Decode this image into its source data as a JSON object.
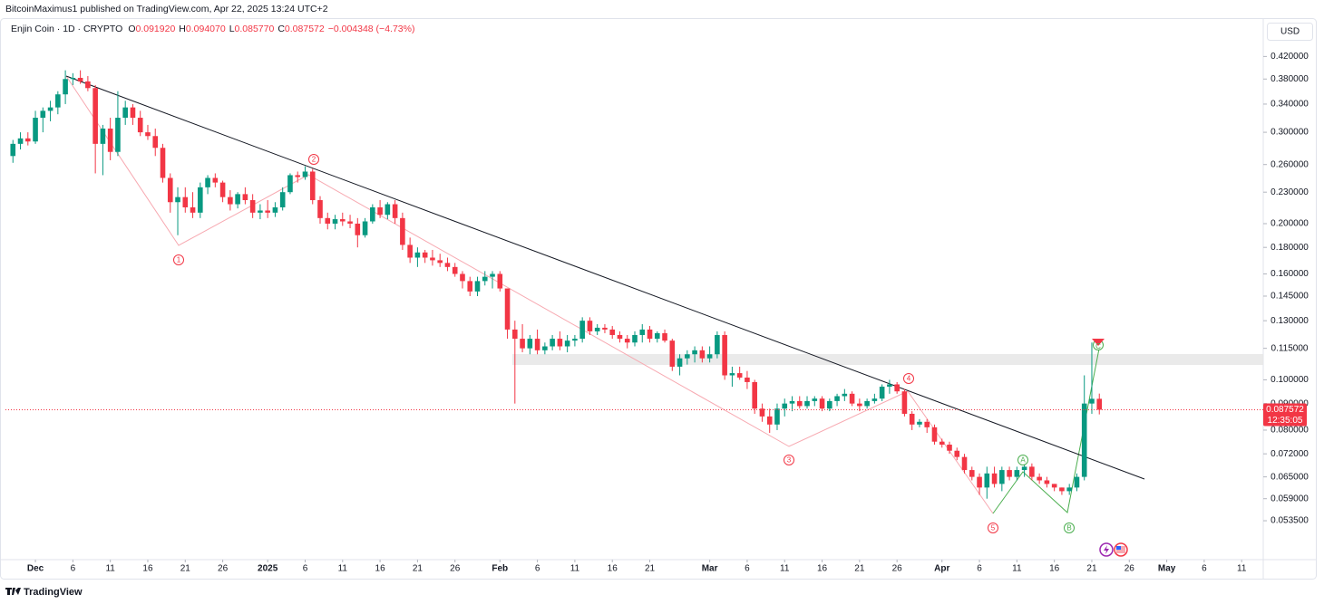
{
  "header": {
    "publisher": "BitcoinMaximus1 published on TradingView.com, Apr 22, 2025 13:24 UTC+2",
    "symbol": "Enjin Coin · 1D · CRYPTO",
    "ohlc": [
      {
        "key": "O",
        "value": "0.091920"
      },
      {
        "key": "H",
        "value": "0.094070"
      },
      {
        "key": "L",
        "value": "0.085770"
      },
      {
        "key": "C",
        "value": "0.087572"
      }
    ],
    "change": "−0.004348 (−4.73%)",
    "currency": "USD"
  },
  "annotations": {
    "waves": [
      "1",
      "2",
      "3",
      "4",
      "5"
    ],
    "corrections": [
      "A",
      "B",
      "C"
    ]
  },
  "footer": {
    "brand": "TradingView"
  },
  "chart_data": {
    "type": "candlestick",
    "log_scale": true,
    "grid": false,
    "up_color": "#089981",
    "down_color": "#f23645",
    "x": [
      "Nov 28",
      "Nov 29",
      "Nov 30",
      "Dec 1",
      "Dec 2",
      "Dec 3",
      "Dec 4",
      "Dec 5",
      "Dec 6",
      "Dec 7",
      "Dec 8",
      "Dec 9",
      "Dec 10",
      "Dec 11",
      "Dec 12",
      "Dec 13",
      "Dec 14",
      "Dec 15",
      "Dec 16",
      "Dec 17",
      "Dec 18",
      "Dec 19",
      "Dec 20",
      "Dec 21",
      "Dec 22",
      "Dec 23",
      "Dec 24",
      "Dec 25",
      "Dec 26",
      "Dec 27",
      "Dec 28",
      "Dec 29",
      "Dec 30",
      "Dec 31",
      "Jan 1",
      "Jan 2",
      "Jan 3",
      "Jan 4",
      "Jan 5",
      "Jan 6",
      "Jan 7",
      "Jan 8",
      "Jan 9",
      "Jan 10",
      "Jan 11",
      "Jan 12",
      "Jan 13",
      "Jan 14",
      "Jan 15",
      "Jan 16",
      "Jan 17",
      "Jan 18",
      "Jan 19",
      "Jan 20",
      "Jan 21",
      "Jan 22",
      "Jan 23",
      "Jan 24",
      "Jan 25",
      "Jan 26",
      "Jan 27",
      "Jan 28",
      "Jan 29",
      "Jan 30",
      "Jan 31",
      "Feb 1",
      "Feb 2",
      "Feb 3",
      "Feb 4",
      "Feb 5",
      "Feb 6",
      "Feb 7",
      "Feb 8",
      "Feb 9",
      "Feb 10",
      "Feb 11",
      "Feb 12",
      "Feb 13",
      "Feb 14",
      "Feb 15",
      "Feb 16",
      "Feb 17",
      "Feb 18",
      "Feb 19",
      "Feb 20",
      "Feb 21",
      "Feb 22",
      "Feb 23",
      "Feb 24",
      "Feb 25",
      "Feb 26",
      "Feb 27",
      "Feb 28",
      "Mar 1",
      "Mar 2",
      "Mar 3",
      "Mar 4",
      "Mar 5",
      "Mar 6",
      "Mar 7",
      "Mar 8",
      "Mar 9",
      "Mar 10",
      "Mar 11",
      "Mar 12",
      "Mar 13",
      "Mar 14",
      "Mar 15",
      "Mar 16",
      "Mar 17",
      "Mar 18",
      "Mar 19",
      "Mar 20",
      "Mar 21",
      "Mar 22",
      "Mar 23",
      "Mar 24",
      "Mar 25",
      "Mar 26",
      "Mar 27",
      "Mar 28",
      "Mar 29",
      "Mar 30",
      "Mar 31",
      "Apr 1",
      "Apr 2",
      "Apr 3",
      "Apr 4",
      "Apr 5",
      "Apr 6",
      "Apr 7",
      "Apr 8",
      "Apr 9",
      "Apr 10",
      "Apr 11",
      "Apr 12",
      "Apr 13",
      "Apr 14",
      "Apr 15",
      "Apr 16",
      "Apr 17",
      "Apr 18",
      "Apr 19",
      "Apr 20",
      "Apr 21",
      "Apr 22"
    ],
    "open": [
      0.27,
      0.285,
      0.292,
      0.288,
      0.32,
      0.33,
      0.335,
      0.355,
      0.38,
      0.382,
      0.376,
      0.365,
      0.285,
      0.305,
      0.275,
      0.32,
      0.335,
      0.32,
      0.3,
      0.295,
      0.28,
      0.245,
      0.22,
      0.225,
      0.215,
      0.21,
      0.235,
      0.245,
      0.24,
      0.225,
      0.218,
      0.228,
      0.222,
      0.21,
      0.212,
      0.21,
      0.215,
      0.23,
      0.248,
      0.246,
      0.252,
      0.222,
      0.205,
      0.2,
      0.204,
      0.202,
      0.2,
      0.19,
      0.202,
      0.215,
      0.208,
      0.218,
      0.205,
      0.182,
      0.172,
      0.176,
      0.172,
      0.17,
      0.168,
      0.165,
      0.16,
      0.155,
      0.148,
      0.155,
      0.158,
      0.16,
      0.15,
      0.125,
      0.12,
      0.115,
      0.12,
      0.114,
      0.116,
      0.12,
      0.116,
      0.119,
      0.12,
      0.13,
      0.124,
      0.126,
      0.125,
      0.122,
      0.12,
      0.118,
      0.122,
      0.125,
      0.12,
      0.123,
      0.119,
      0.106,
      0.11,
      0.112,
      0.114,
      0.11,
      0.112,
      0.122,
      0.102,
      0.103,
      0.101,
      0.099,
      0.088,
      0.085,
      0.082,
      0.088,
      0.09,
      0.091,
      0.089,
      0.091,
      0.092,
      0.088,
      0.091,
      0.093,
      0.094,
      0.09,
      0.089,
      0.091,
      0.092,
      0.097,
      0.098,
      0.095,
      0.086,
      0.082,
      0.083,
      0.081,
      0.076,
      0.075,
      0.073,
      0.071,
      0.067,
      0.065,
      0.062,
      0.066,
      0.063,
      0.067,
      0.065,
      0.067,
      0.068,
      0.065,
      0.064,
      0.063,
      0.062,
      0.061,
      0.062,
      0.065,
      0.09,
      0.09192
    ],
    "high": [
      0.29,
      0.3,
      0.3,
      0.33,
      0.335,
      0.345,
      0.36,
      0.395,
      0.39,
      0.395,
      0.385,
      0.37,
      0.31,
      0.32,
      0.36,
      0.345,
      0.34,
      0.33,
      0.31,
      0.305,
      0.285,
      0.25,
      0.235,
      0.235,
      0.23,
      0.24,
      0.248,
      0.25,
      0.242,
      0.232,
      0.23,
      0.235,
      0.228,
      0.218,
      0.222,
      0.22,
      0.235,
      0.25,
      0.252,
      0.258,
      0.255,
      0.226,
      0.21,
      0.208,
      0.21,
      0.208,
      0.205,
      0.205,
      0.218,
      0.222,
      0.22,
      0.222,
      0.21,
      0.188,
      0.18,
      0.178,
      0.178,
      0.175,
      0.172,
      0.168,
      0.162,
      0.158,
      0.158,
      0.162,
      0.162,
      0.162,
      0.15,
      0.13,
      0.128,
      0.122,
      0.125,
      0.118,
      0.122,
      0.124,
      0.122,
      0.122,
      0.132,
      0.132,
      0.128,
      0.128,
      0.127,
      0.124,
      0.122,
      0.124,
      0.128,
      0.127,
      0.124,
      0.125,
      0.12,
      0.112,
      0.114,
      0.116,
      0.116,
      0.116,
      0.124,
      0.124,
      0.106,
      0.106,
      0.104,
      0.1,
      0.09,
      0.088,
      0.09,
      0.092,
      0.093,
      0.093,
      0.093,
      0.093,
      0.093,
      0.092,
      0.094,
      0.096,
      0.095,
      0.092,
      0.092,
      0.094,
      0.098,
      0.1,
      0.099,
      0.096,
      0.087,
      0.084,
      0.084,
      0.082,
      0.077,
      0.076,
      0.074,
      0.072,
      0.068,
      0.066,
      0.068,
      0.068,
      0.068,
      0.068,
      0.068,
      0.07,
      0.069,
      0.066,
      0.065,
      0.063,
      0.062,
      0.063,
      0.066,
      0.102,
      0.118,
      0.09407
    ],
    "low": [
      0.262,
      0.278,
      0.283,
      0.285,
      0.3,
      0.315,
      0.325,
      0.34,
      0.37,
      0.372,
      0.36,
      0.25,
      0.248,
      0.265,
      0.27,
      0.31,
      0.31,
      0.295,
      0.29,
      0.27,
      0.24,
      0.21,
      0.19,
      0.21,
      0.205,
      0.205,
      0.228,
      0.235,
      0.22,
      0.212,
      0.214,
      0.218,
      0.205,
      0.204,
      0.205,
      0.206,
      0.212,
      0.228,
      0.24,
      0.243,
      0.218,
      0.2,
      0.195,
      0.195,
      0.198,
      0.196,
      0.18,
      0.188,
      0.2,
      0.205,
      0.204,
      0.2,
      0.178,
      0.168,
      0.165,
      0.168,
      0.166,
      0.165,
      0.162,
      0.158,
      0.15,
      0.145,
      0.145,
      0.152,
      0.15,
      0.148,
      0.12,
      0.09,
      0.113,
      0.112,
      0.112,
      0.112,
      0.114,
      0.114,
      0.113,
      0.116,
      0.118,
      0.122,
      0.122,
      0.123,
      0.12,
      0.118,
      0.115,
      0.116,
      0.118,
      0.118,
      0.118,
      0.118,
      0.104,
      0.102,
      0.107,
      0.108,
      0.108,
      0.108,
      0.11,
      0.1,
      0.097,
      0.1,
      0.096,
      0.086,
      0.083,
      0.079,
      0.08,
      0.085,
      0.087,
      0.088,
      0.088,
      0.089,
      0.087,
      0.087,
      0.089,
      0.091,
      0.089,
      0.087,
      0.088,
      0.09,
      0.091,
      0.094,
      0.094,
      0.085,
      0.08,
      0.081,
      0.079,
      0.075,
      0.074,
      0.072,
      0.07,
      0.066,
      0.064,
      0.06,
      0.059,
      0.062,
      0.061,
      0.064,
      0.064,
      0.065,
      0.064,
      0.063,
      0.062,
      0.061,
      0.06,
      0.06,
      0.061,
      0.064,
      0.086,
      0.08577
    ],
    "close": [
      0.285,
      0.292,
      0.288,
      0.32,
      0.33,
      0.335,
      0.355,
      0.38,
      0.382,
      0.376,
      0.365,
      0.285,
      0.305,
      0.275,
      0.32,
      0.335,
      0.32,
      0.3,
      0.295,
      0.28,
      0.245,
      0.22,
      0.225,
      0.215,
      0.21,
      0.235,
      0.245,
      0.24,
      0.225,
      0.218,
      0.228,
      0.222,
      0.21,
      0.212,
      0.21,
      0.215,
      0.23,
      0.248,
      0.246,
      0.252,
      0.222,
      0.205,
      0.2,
      0.204,
      0.202,
      0.2,
      0.19,
      0.202,
      0.215,
      0.208,
      0.218,
      0.205,
      0.182,
      0.172,
      0.176,
      0.172,
      0.17,
      0.168,
      0.165,
      0.16,
      0.155,
      0.148,
      0.155,
      0.158,
      0.16,
      0.15,
      0.125,
      0.12,
      0.115,
      0.12,
      0.114,
      0.116,
      0.12,
      0.116,
      0.119,
      0.12,
      0.13,
      0.124,
      0.126,
      0.125,
      0.122,
      0.12,
      0.118,
      0.122,
      0.125,
      0.12,
      0.123,
      0.119,
      0.106,
      0.11,
      0.112,
      0.114,
      0.11,
      0.112,
      0.122,
      0.102,
      0.103,
      0.101,
      0.099,
      0.088,
      0.085,
      0.082,
      0.088,
      0.09,
      0.091,
      0.089,
      0.091,
      0.092,
      0.088,
      0.091,
      0.093,
      0.094,
      0.09,
      0.089,
      0.091,
      0.092,
      0.097,
      0.098,
      0.095,
      0.086,
      0.082,
      0.083,
      0.081,
      0.076,
      0.075,
      0.073,
      0.071,
      0.067,
      0.065,
      0.062,
      0.066,
      0.063,
      0.067,
      0.065,
      0.067,
      0.068,
      0.065,
      0.064,
      0.063,
      0.062,
      0.061,
      0.062,
      0.065,
      0.09,
      0.09192,
      0.087572
    ],
    "xlim": [
      "Nov 27",
      "May 14"
    ],
    "ylim": [
      0.0452,
      0.494
    ],
    "yticks": [
      {
        "value": 0.42,
        "label": "0.420000"
      },
      {
        "value": 0.38,
        "label": "0.380000"
      },
      {
        "value": 0.34,
        "label": "0.340000"
      },
      {
        "value": 0.3,
        "label": "0.300000"
      },
      {
        "value": 0.26,
        "label": "0.260000"
      },
      {
        "value": 0.23,
        "label": "0.230000"
      },
      {
        "value": 0.2,
        "label": "0.200000"
      },
      {
        "value": 0.18,
        "label": "0.180000"
      },
      {
        "value": 0.16,
        "label": "0.160000"
      },
      {
        "value": 0.145,
        "label": "0.145000"
      },
      {
        "value": 0.13,
        "label": "0.130000"
      },
      {
        "value": 0.115,
        "label": "0.115000"
      },
      {
        "value": 0.1,
        "label": "0.100000"
      },
      {
        "value": 0.09,
        "label": "0.090000"
      },
      {
        "value": 0.08,
        "label": "0.080000"
      },
      {
        "value": 0.072,
        "label": "0.072000"
      },
      {
        "value": 0.065,
        "label": "0.065000"
      },
      {
        "value": 0.059,
        "label": "0.059000"
      },
      {
        "value": 0.0535,
        "label": "0.053500"
      }
    ],
    "xticks": [
      {
        "value": "Dec 1",
        "label": "Dec"
      },
      {
        "value": "Dec 6",
        "label": "6"
      },
      {
        "value": "Dec 11",
        "label": "11"
      },
      {
        "value": "Dec 16",
        "label": "16"
      },
      {
        "value": "Dec 21",
        "label": "21"
      },
      {
        "value": "Dec 26",
        "label": "26"
      },
      {
        "value": "Jan 1",
        "label": "2025"
      },
      {
        "value": "Jan 6",
        "label": "6"
      },
      {
        "value": "Jan 11",
        "label": "11"
      },
      {
        "value": "Jan 16",
        "label": "16"
      },
      {
        "value": "Jan 21",
        "label": "21"
      },
      {
        "value": "Jan 26",
        "label": "26"
      },
      {
        "value": "Feb 1",
        "label": "Feb"
      },
      {
        "value": "Feb 6",
        "label": "6"
      },
      {
        "value": "Feb 11",
        "label": "11"
      },
      {
        "value": "Feb 16",
        "label": "16"
      },
      {
        "value": "Feb 21",
        "label": "21"
      },
      {
        "value": "Mar 1",
        "label": "Mar"
      },
      {
        "value": "Mar 6",
        "label": "6"
      },
      {
        "value": "Mar 11",
        "label": "11"
      },
      {
        "value": "Mar 16",
        "label": "16"
      },
      {
        "value": "Mar 21",
        "label": "21"
      },
      {
        "value": "Mar 26",
        "label": "26"
      },
      {
        "value": "Apr 1",
        "label": "Apr"
      },
      {
        "value": "Apr 6",
        "label": "6"
      },
      {
        "value": "Apr 11",
        "label": "11"
      },
      {
        "value": "Apr 16",
        "label": "16"
      },
      {
        "value": "Apr 21",
        "label": "21"
      },
      {
        "value": "Apr 26",
        "label": "26"
      },
      {
        "value": "May 1",
        "label": "May"
      },
      {
        "value": "May 6",
        "label": "6"
      },
      {
        "value": "May 11",
        "label": "11"
      }
    ],
    "last_price": {
      "value": 0.087572,
      "label": "0.087572"
    },
    "countdown": "12:35:05"
  }
}
